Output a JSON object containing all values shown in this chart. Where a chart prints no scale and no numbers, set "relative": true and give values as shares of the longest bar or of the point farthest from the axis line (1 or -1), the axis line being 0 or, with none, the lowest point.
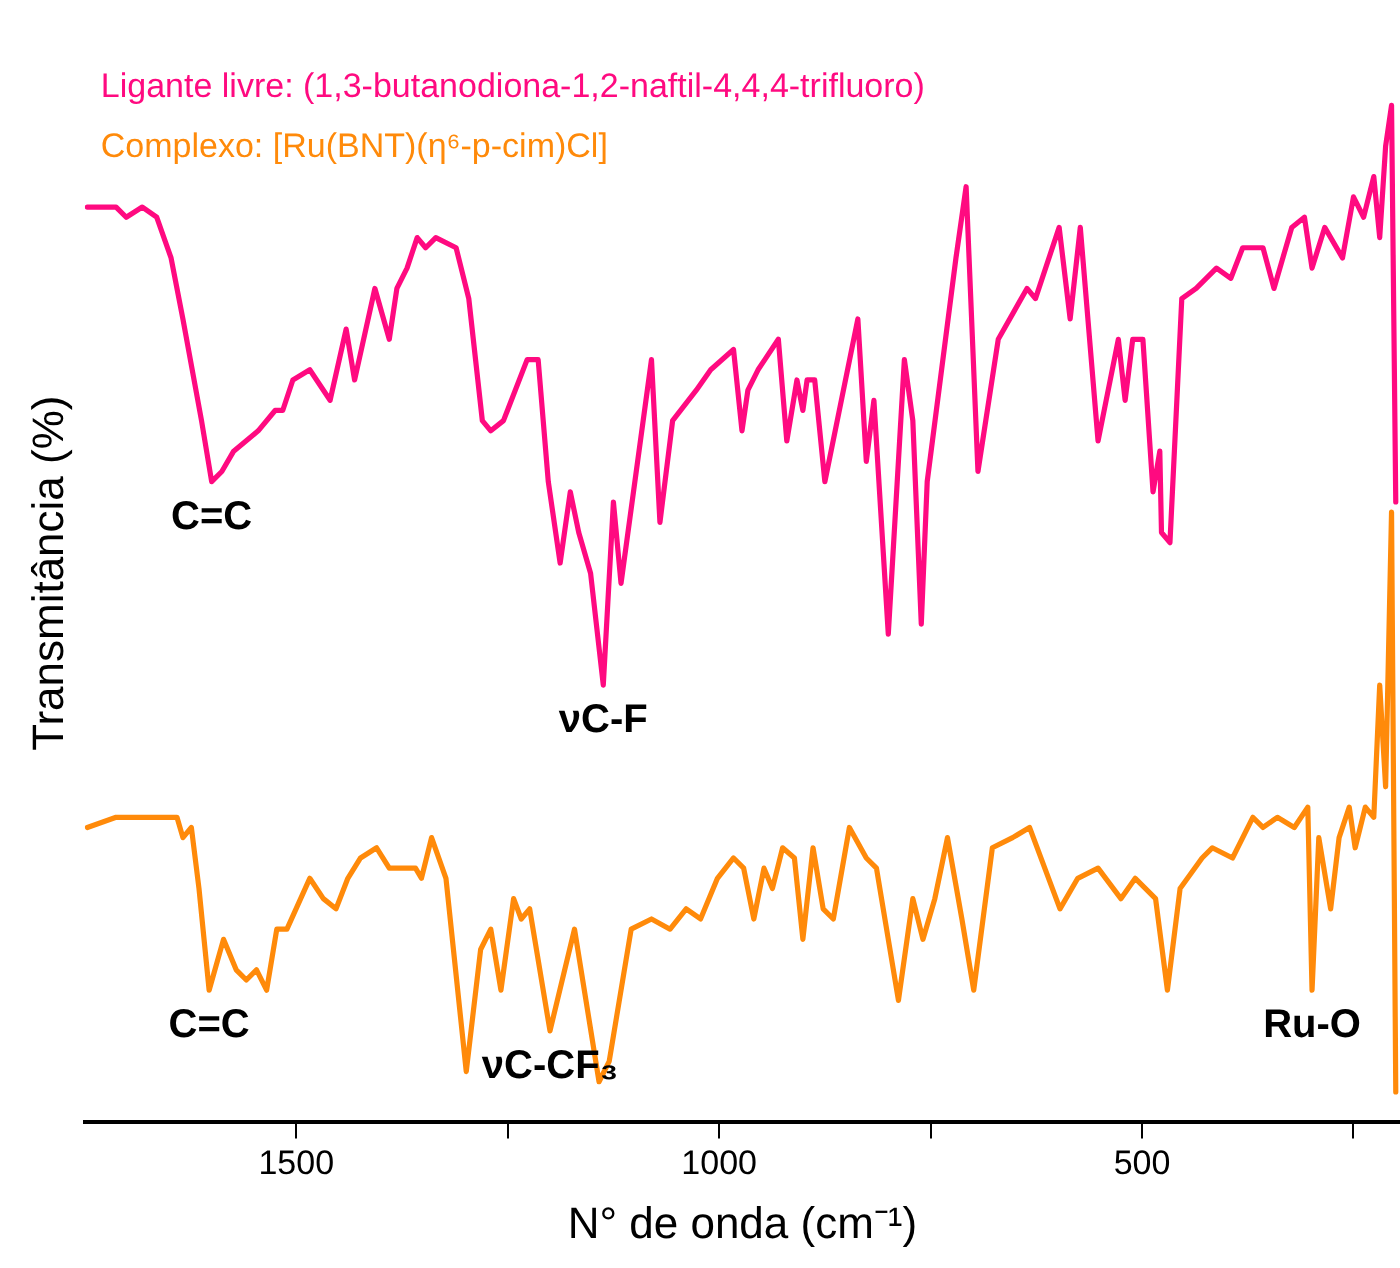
{
  "chart_data": {
    "type": "line",
    "relative": true,
    "xlabel": "N° de onda (cm⁻¹)",
    "ylabel": "Transmitância (%)",
    "xlim": [
      1750,
      195
    ],
    "xticks": [
      1500,
      {
        "value": 1250,
        "label": null
      },
      1000,
      {
        "value": 750,
        "label": null
      },
      500,
      {
        "value": 250,
        "label": null
      }
    ],
    "grid": false,
    "legend": "top left",
    "marker": "none",
    "line_style": "solid",
    "series": [
      {
        "name": "Ligante livre: (1,3-butanodiona-1,2-naftil-4,4,4-trifluoro)",
        "color": "#ff0a80",
        "x": [
          1747,
          1713,
          1701,
          1682,
          1665,
          1648,
          1634,
          1612,
          1600,
          1588,
          1574,
          1545,
          1525,
          1516,
          1504,
          1484,
          1460,
          1441,
          1431,
          1407,
          1390,
          1381,
          1369,
          1357,
          1347,
          1335,
          1311,
          1296,
          1280,
          1270,
          1255,
          1227,
          1214,
          1202,
          1188,
          1176,
          1166,
          1152,
          1137,
          1125,
          1116,
          1080,
          1070,
          1055,
          1027,
          1010,
          983,
          973,
          966,
          954,
          930,
          920,
          908,
          901,
          896,
          887,
          875,
          836,
          826,
          817,
          800,
          781,
          771,
          761,
          754,
          720,
          708,
          694,
          670,
          636,
          626,
          598,
          585,
          573,
          552,
          528,
          520,
          511,
          499,
          487,
          479,
          477,
          467,
          453,
          436,
          412,
          395,
          381,
          357,
          344,
          323,
          308,
          299,
          284,
          263,
          250,
          238,
          226,
          219,
          212,
          205,
          200
        ],
        "values": [
          0.9,
          0.9,
          0.89,
          0.9,
          0.89,
          0.85,
          0.79,
          0.69,
          0.63,
          0.64,
          0.66,
          0.68,
          0.7,
          0.7,
          0.73,
          0.74,
          0.71,
          0.78,
          0.73,
          0.82,
          0.77,
          0.82,
          0.84,
          0.87,
          0.86,
          0.87,
          0.86,
          0.81,
          0.69,
          0.68,
          0.69,
          0.75,
          0.75,
          0.63,
          0.55,
          0.62,
          0.58,
          0.54,
          0.43,
          0.61,
          0.53,
          0.75,
          0.59,
          0.69,
          0.72,
          0.74,
          0.76,
          0.68,
          0.72,
          0.74,
          0.77,
          0.67,
          0.73,
          0.7,
          0.73,
          0.73,
          0.63,
          0.79,
          0.65,
          0.71,
          0.48,
          0.75,
          0.69,
          0.49,
          0.63,
          0.85,
          0.92,
          0.64,
          0.77,
          0.82,
          0.81,
          0.88,
          0.79,
          0.88,
          0.67,
          0.77,
          0.71,
          0.77,
          0.77,
          0.62,
          0.66,
          0.58,
          0.57,
          0.81,
          0.82,
          0.84,
          0.83,
          0.86,
          0.86,
          0.82,
          0.88,
          0.89,
          0.84,
          0.88,
          0.85,
          0.91,
          0.89,
          0.93,
          0.87,
          0.96,
          1,
          0.61
        ]
      },
      {
        "name": "Complexo: [Ru(BNT)(η⁶-p-cim)Cl]",
        "color": "#ff8a0a",
        "x": [
          1747,
          1713,
          1689,
          1665,
          1641,
          1634,
          1624,
          1615,
          1603,
          1586,
          1571,
          1559,
          1547,
          1535,
          1523,
          1511,
          1484,
          1468,
          1453,
          1439,
          1424,
          1405,
          1390,
          1376,
          1359,
          1352,
          1340,
          1323,
          1299,
          1282,
          1270,
          1258,
          1243,
          1234,
          1224,
          1200,
          1171,
          1142,
          1130,
          1104,
          1080,
          1058,
          1039,
          1022,
          1002,
          983,
          971,
          959,
          947,
          937,
          925,
          911,
          901,
          889,
          877,
          865,
          846,
          826,
          814,
          788,
          771,
          759,
          745,
          730,
          713,
          699,
          677,
          653,
          633,
          597,
          576,
          552,
          525,
          508,
          484,
          470,
          455,
          429,
          417,
          393,
          369,
          357,
          340,
          320,
          304,
          299,
          291,
          277,
          267,
          255,
          248,
          236,
          226,
          219,
          212,
          205,
          200
        ],
        "values": [
          0.29,
          0.3,
          0.3,
          0.3,
          0.3,
          0.28,
          0.29,
          0.23,
          0.13,
          0.18,
          0.15,
          0.14,
          0.15,
          0.13,
          0.19,
          0.19,
          0.24,
          0.22,
          0.21,
          0.24,
          0.26,
          0.27,
          0.25,
          0.25,
          0.25,
          0.24,
          0.28,
          0.24,
          0.05,
          0.17,
          0.19,
          0.13,
          0.22,
          0.2,
          0.21,
          0.09,
          0.19,
          0.04,
          0.06,
          0.19,
          0.2,
          0.19,
          0.21,
          0.2,
          0.24,
          0.26,
          0.25,
          0.2,
          0.25,
          0.23,
          0.27,
          0.26,
          0.18,
          0.27,
          0.21,
          0.2,
          0.29,
          0.26,
          0.25,
          0.12,
          0.22,
          0.18,
          0.22,
          0.28,
          0.2,
          0.13,
          0.27,
          0.28,
          0.29,
          0.21,
          0.24,
          0.25,
          0.22,
          0.24,
          0.22,
          0.13,
          0.23,
          0.26,
          0.27,
          0.26,
          0.3,
          0.29,
          0.3,
          0.29,
          0.31,
          0.13,
          0.28,
          0.21,
          0.28,
          0.31,
          0.27,
          0.31,
          0.3,
          0.43,
          0.33,
          0.6,
          0.03
        ]
      }
    ],
    "annotations": [
      {
        "text": "C=C",
        "x": 1600,
        "y": 0.63
      },
      {
        "text": "νC-F",
        "x": 1137,
        "y": 0.43
      },
      {
        "text": "C=C",
        "x": 1603,
        "y": 0.13
      },
      {
        "text": "νC-CF₃",
        "x": 1200,
        "y": 0.09
      },
      {
        "text": "Ru-O",
        "x": 299,
        "y": 0.13
      }
    ]
  }
}
